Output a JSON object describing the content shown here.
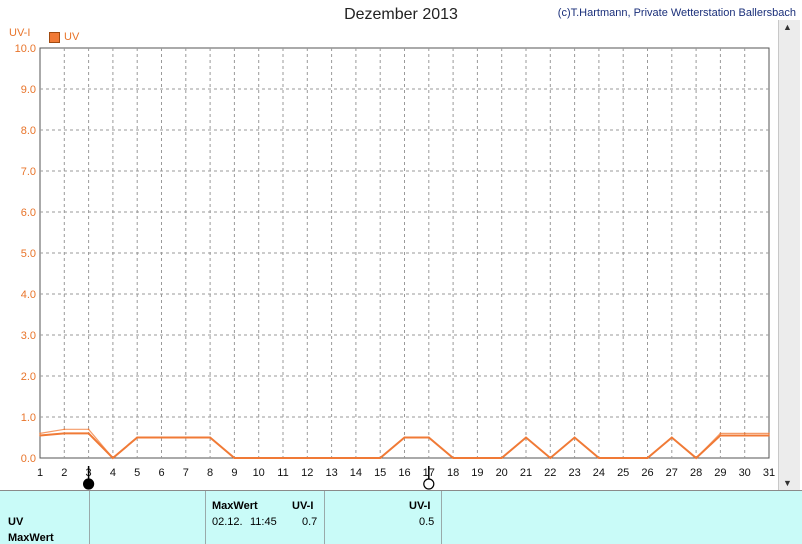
{
  "header": {
    "title": "Dezember 2013",
    "credit": "(c)T.Hartmann, Private Wetterstation Ballersbach",
    "y_unit": "UV-I",
    "legend_label": "UV"
  },
  "colors": {
    "series": "#f07a36",
    "axis_text": "#e8742a",
    "panel": "#c9fbf8"
  },
  "moon_markers": [
    {
      "day": 3,
      "phase": "full-moon"
    },
    {
      "day": 17,
      "phase": "new-moon"
    }
  ],
  "chart_data": {
    "type": "line",
    "title": "Dezember 2013",
    "ylabel": "UV-I",
    "xlim": [
      1,
      31
    ],
    "ylim": [
      0,
      10
    ],
    "y_ticks": [
      "0.0",
      "1.0",
      "2.0",
      "3.0",
      "4.0",
      "5.0",
      "6.0",
      "7.0",
      "8.0",
      "9.0",
      "10.0"
    ],
    "x_ticks": [
      "1",
      "2",
      "3",
      "4",
      "5",
      "6",
      "7",
      "8",
      "9",
      "10",
      "11",
      "12",
      "13",
      "14",
      "15",
      "16",
      "17",
      "18",
      "19",
      "20",
      "21",
      "22",
      "23",
      "24",
      "25",
      "26",
      "27",
      "28",
      "29",
      "30",
      "31"
    ],
    "grid": true,
    "legend": "top-left",
    "series": [
      {
        "name": "UV",
        "x": [
          1,
          2,
          3,
          4,
          5,
          6,
          7,
          8,
          9,
          10,
          11,
          12,
          13,
          14,
          15,
          16,
          17,
          18,
          19,
          20,
          21,
          22,
          23,
          24,
          25,
          26,
          27,
          28,
          29,
          30,
          31
        ],
        "y": [
          0.6,
          0.7,
          0.7,
          0,
          0.5,
          0.5,
          0.5,
          0.5,
          0,
          0,
          0,
          0,
          0,
          0,
          0,
          0.5,
          0.5,
          0,
          0,
          0,
          0.5,
          0,
          0.5,
          0,
          0,
          0,
          0.5,
          0,
          0.6,
          0.6,
          0.6
        ]
      },
      {
        "x": [
          1,
          2,
          3,
          4,
          5,
          6,
          7,
          8,
          9,
          10,
          11,
          12,
          13,
          14,
          15,
          16,
          17,
          18,
          19,
          20,
          21,
          22,
          23,
          24,
          25,
          26,
          27,
          28,
          29,
          30,
          31
        ],
        "y": [
          0.55,
          0.6,
          0.6,
          0,
          0.5,
          0.5,
          0.5,
          0.5,
          0,
          0,
          0,
          0,
          0,
          0,
          0,
          0.5,
          0.5,
          0,
          0,
          0,
          0.5,
          0,
          0.5,
          0,
          0,
          0,
          0.5,
          0,
          0.55,
          0.55,
          0.55
        ]
      }
    ]
  },
  "summary": {
    "row_uv": "UV",
    "row_maxwert": "MaxWert",
    "col1_header": "MaxWert",
    "col1_unit": "UV-I",
    "col1_date": "02.12.",
    "col1_time": "11:45",
    "col1_value": "0.7",
    "col2_unit": "UV-I",
    "col2_value": "0.5"
  }
}
